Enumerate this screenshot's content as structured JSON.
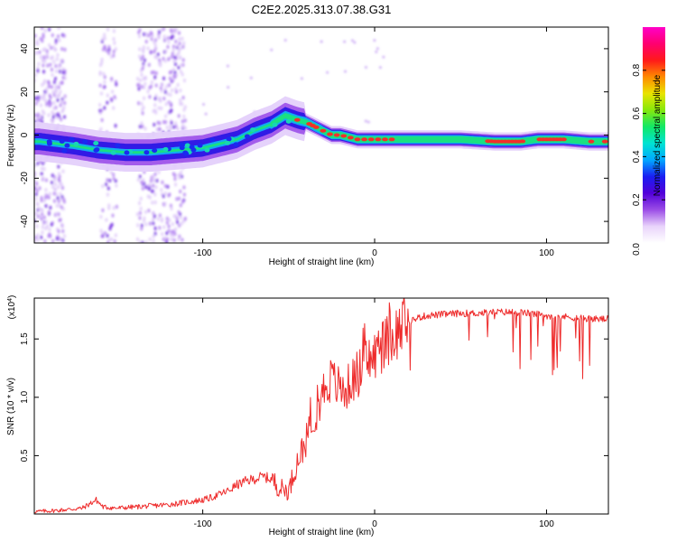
{
  "title": "C2E2.2025.313.07.38.G31",
  "chart_data": [
    {
      "type": "heatmap",
      "xlabel": "Height of straight line (km)",
      "ylabel": "Frequency (Hz)",
      "xlim": [
        -198,
        136
      ],
      "ylim": [
        -50,
        50
      ],
      "x_ticks": [
        -100,
        0,
        100
      ],
      "x_tick_labels": [
        "-100",
        "0",
        "100"
      ],
      "y_ticks": [
        -40,
        -20,
        0,
        20,
        40
      ],
      "y_tick_labels": [
        "-40",
        "-20",
        "0",
        "20",
        "40"
      ],
      "ridge": {
        "x": [
          -195,
          -175,
          -160,
          -145,
          -130,
          -115,
          -100,
          -90,
          -80,
          -70,
          -60,
          -52,
          -45,
          -40,
          -35,
          -30,
          -25,
          -20,
          -15,
          -10,
          0,
          10,
          30,
          50,
          70,
          85,
          95,
          110,
          125,
          136
        ],
        "freq": [
          -3,
          -5,
          -7,
          -8,
          -8,
          -7,
          -6,
          -4,
          -2,
          2,
          5,
          9,
          7,
          6,
          4,
          2,
          0,
          0,
          -1,
          -2,
          -2,
          -2,
          -2,
          -2,
          -3,
          -3,
          -2,
          -2,
          -3,
          -3
        ]
      },
      "colorbar": {
        "label": "Normalized spectral amplitude",
        "range": [
          0,
          1
        ],
        "ticks": [
          0.2,
          0.4,
          0.6,
          0.8
        ],
        "tick_labels": [
          "0.2",
          "0.4",
          "0.6",
          "0.8"
        ],
        "bottom_label": "0.0",
        "colors": [
          "#ffffff",
          "#e9d4fb",
          "#9b4de6",
          "#5200d8",
          "#1a1ef2",
          "#00a8ff",
          "#00e3d2",
          "#12e866",
          "#86e80c",
          "#e9e300",
          "#ff8a00",
          "#ff1a1a",
          "#ff0070",
          "#ff00c8"
        ]
      }
    },
    {
      "type": "line",
      "xlabel": "Height of straight line (km)",
      "ylabel": "SNR (10 * v/v)",
      "scale_label": "(x10",
      "scale_exponent": "4",
      "scale_suffix": ")",
      "xlim": [
        -198,
        136
      ],
      "ylim": [
        0,
        1.85
      ],
      "x_ticks": [
        -100,
        0,
        100
      ],
      "x_tick_labels": [
        "-100",
        "0",
        "100"
      ],
      "y_ticks": [
        0.5,
        1.0,
        1.5
      ],
      "y_tick_labels": [
        "0.5",
        "1.0",
        "1.5"
      ],
      "color": "#ee2b2b",
      "series": [
        {
          "name": "SNR",
          "x": [
            -198,
            -185,
            -170,
            -162,
            -158,
            -150,
            -140,
            -130,
            -120,
            -110,
            -100,
            -95,
            -90,
            -85,
            -80,
            -75,
            -70,
            -65,
            -60,
            -55,
            -50,
            -45,
            -42,
            -38,
            -35,
            -32,
            -30,
            -28,
            -25,
            -22,
            -18,
            -15,
            -10,
            -5,
            0,
            5,
            10,
            15,
            20,
            25,
            30,
            40,
            50,
            60,
            70,
            80,
            90,
            100,
            110,
            120,
            130,
            136
          ],
          "y": [
            0.02,
            0.03,
            0.05,
            0.12,
            0.06,
            0.05,
            0.06,
            0.07,
            0.08,
            0.1,
            0.12,
            0.14,
            0.17,
            0.2,
            0.25,
            0.28,
            0.3,
            0.32,
            0.3,
            0.22,
            0.2,
            0.45,
            0.55,
            0.7,
            0.85,
            0.95,
            1.05,
            1.12,
            1.15,
            1.1,
            1.05,
            1.1,
            1.2,
            1.3,
            1.35,
            1.45,
            1.5,
            1.6,
            1.65,
            1.68,
            1.7,
            1.71,
            1.72,
            1.72,
            1.73,
            1.73,
            1.72,
            1.7,
            1.69,
            1.68,
            1.67,
            1.67
          ]
        }
      ]
    }
  ]
}
